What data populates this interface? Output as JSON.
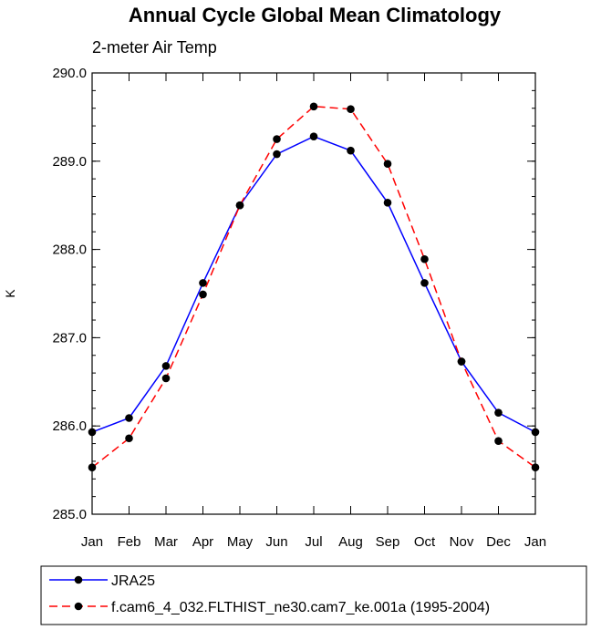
{
  "chart_data": {
    "type": "line",
    "title": "Annual Cycle Global Mean Climatology",
    "subtitle": "2-meter Air Temp",
    "xlabel": "",
    "ylabel": "K",
    "categories": [
      "Jan",
      "Feb",
      "Mar",
      "Apr",
      "May",
      "Jun",
      "Jul",
      "Aug",
      "Sep",
      "Oct",
      "Nov",
      "Dec",
      "Jan"
    ],
    "ylim": [
      285.0,
      290.0
    ],
    "y_ticks": [
      "285.0",
      "286.0",
      "287.0",
      "288.0",
      "289.0",
      "290.0"
    ],
    "grid": false,
    "legend_position": "bottom",
    "series": [
      {
        "name": "JRA25",
        "color": "#0000ff",
        "line_style": "solid",
        "values": [
          285.93,
          286.09,
          286.68,
          287.62,
          288.5,
          289.08,
          289.28,
          289.12,
          288.53,
          287.62,
          286.73,
          286.15,
          285.93
        ]
      },
      {
        "name": "f.cam6_4_032.FLTHIST_ne30.cam7_ke.001a (1995-2004)",
        "color": "#ff0000",
        "line_style": "dashed",
        "values": [
          285.53,
          285.86,
          286.54,
          287.49,
          288.5,
          289.25,
          289.62,
          289.59,
          288.97,
          287.89,
          286.73,
          285.83,
          285.53
        ]
      }
    ]
  }
}
